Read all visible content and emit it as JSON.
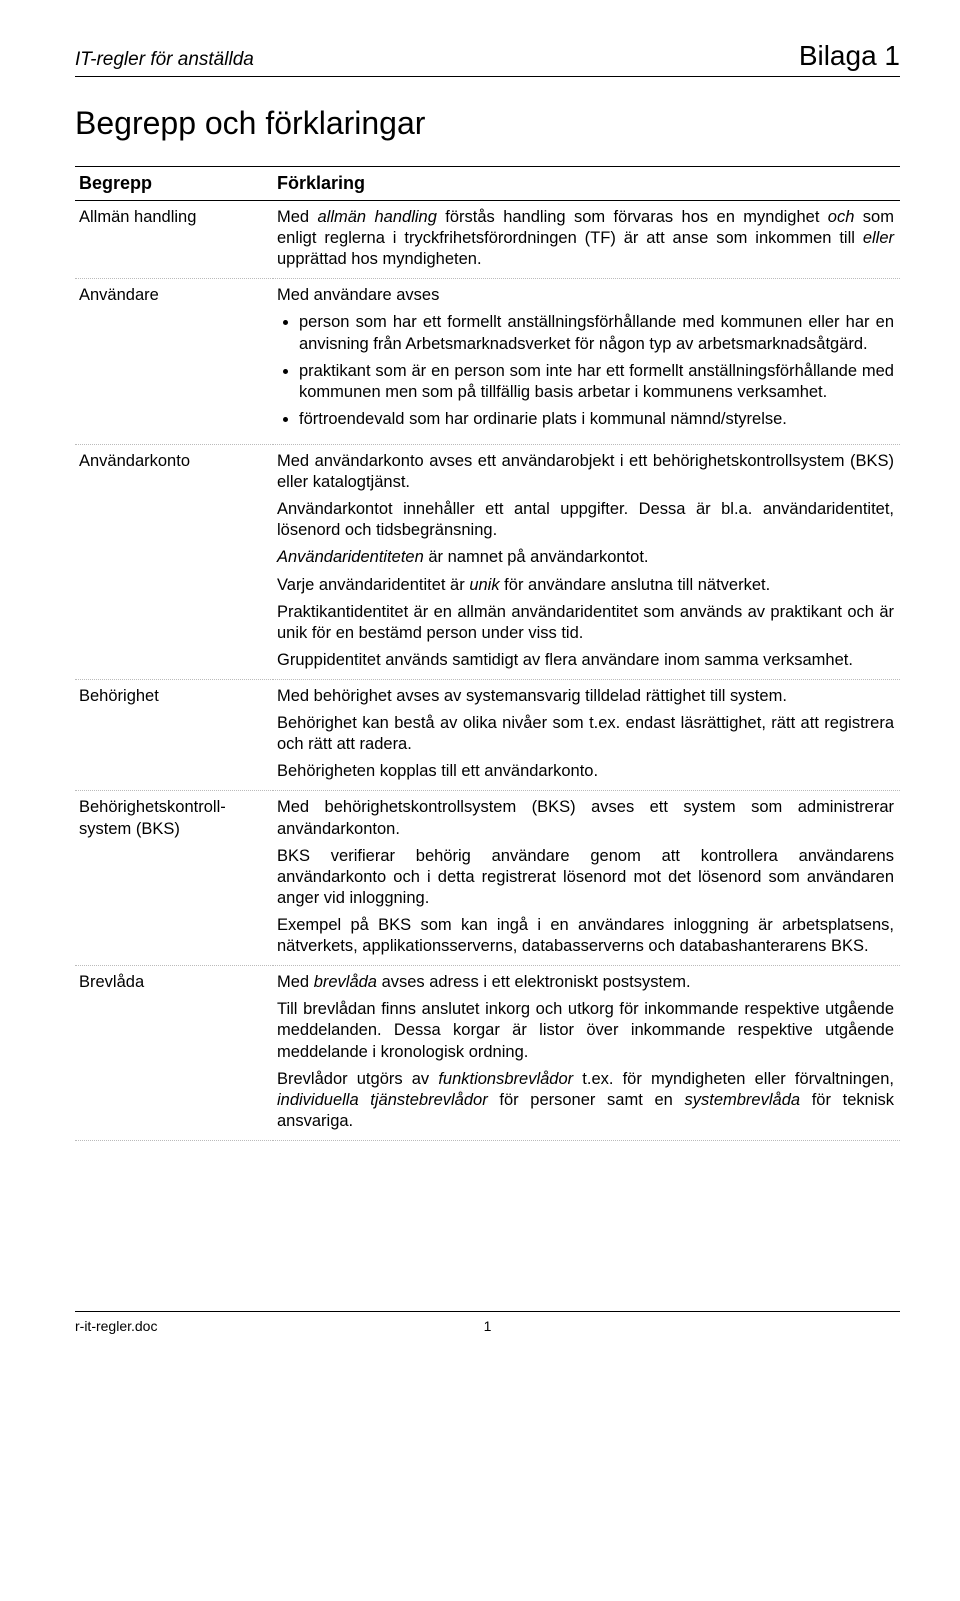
{
  "header": {
    "left": "IT-regler för anställda",
    "right": "Bilaga 1"
  },
  "title": "Begrepp och förklaringar",
  "table": {
    "head_term": "Begrepp",
    "head_desc": "Förklaring"
  },
  "rows": {
    "r0": {
      "term": "Allmän handling",
      "p0_a": "Med ",
      "p0_b": "allmän handling",
      "p0_c": " förstås handling som förvaras hos en myndighet ",
      "p0_d": "och",
      "p0_e": " som enligt reglerna i tryckfrihetsförordningen (TF) är att anse som inkommen till ",
      "p0_f": "eller",
      "p0_g": " upprättad hos myndigheten."
    },
    "r1": {
      "term": "Användare",
      "intro": "Med användare avses",
      "b0": "person som har ett formellt anställningsförhållande med kommunen eller har en anvisning från Arbetsmarknadsverket för någon typ av arbetsmarknadsåtgärd.",
      "b1": "praktikant som är en person som inte har ett formellt anställningsförhållande med kommunen men som på tillfällig basis arbetar i kommunens verksamhet.",
      "b2": "förtroendevald som har ordinarie plats i kommunal nämnd/styrelse."
    },
    "r2": {
      "term": "Användarkonto",
      "p0": "Med användarkonto avses ett användarobjekt i ett behörighetskontrollsystem (BKS) eller katalogtjänst.",
      "p1": "Användarkontot innehåller ett antal uppgifter. Dessa är bl.a. användaridentitet, lösenord och tidsbegränsning.",
      "p2_a": "Användaridentiteten",
      "p2_b": " är namnet på användarkontot.",
      "p3_a": "Varje användaridentitet är ",
      "p3_b": "unik",
      "p3_c": " för användare anslutna till nätverket.",
      "p4": "Praktikantidentitet är en allmän användaridentitet som används av praktikant och är unik för en bestämd person under viss tid.",
      "p5": "Gruppidentitet används samtidigt av flera användare inom samma verksamhet."
    },
    "r3": {
      "term": "Behörighet",
      "p0": "Med behörighet avses av systemansvarig tilldelad rättighet till system.",
      "p1": "Behörighet kan bestå av olika nivåer som t.ex. endast läsrättighet, rätt att registrera och rätt att radera.",
      "p2": "Behörigheten kopplas till ett användarkonto."
    },
    "r4": {
      "term": "Behörighetskontroll-system (BKS)",
      "p0": "Med behörighetskontrollsystem (BKS) avses ett system som administrerar användarkonton.",
      "p1": "BKS verifierar behörig användare genom att kontrollera användarens användarkonto och i detta registrerat lösenord mot det lösenord som användaren anger vid inloggning.",
      "p2": "Exempel på BKS som kan ingå i en användares inloggning är arbetsplatsens, nätverkets, applikationsserverns, databasserverns och databashanterarens BKS."
    },
    "r5": {
      "term": "Brevlåda",
      "p0_a": "Med ",
      "p0_b": "brevlåda",
      "p0_c": " avses adress i ett elektroniskt postsystem.",
      "p1": "Till brevlådan finns anslutet inkorg och utkorg för inkommande respektive utgående meddelanden. Dessa korgar är listor över inkommande respektive utgående meddelande i kronologisk ordning.",
      "p2_a": "Brevlådor utgörs av ",
      "p2_b": "funktionsbrevlådor",
      "p2_c": " t.ex. för myndigheten eller förvaltningen, ",
      "p2_d": "individuella tjänstebrevlådor",
      "p2_e": " för personer samt en ",
      "p2_f": "systembrevlåda",
      "p2_g": " för teknisk ansvariga."
    }
  },
  "footer": {
    "left": "r-it-regler.doc",
    "page": "1"
  }
}
